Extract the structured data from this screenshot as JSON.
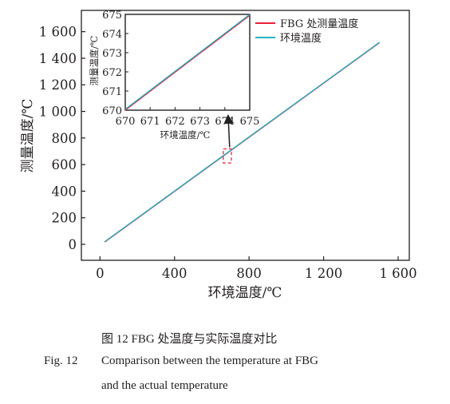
{
  "chart_data": [
    {
      "type": "line",
      "role": "main",
      "xlabel": "环境温度/℃",
      "ylabel": "测量温度/℃",
      "xlim": [
        -100,
        1660
      ],
      "ylim": [
        -120,
        1760
      ],
      "xticks": [
        0,
        400,
        800,
        1200,
        1600
      ],
      "xtick_labels": [
        "0",
        "400",
        "800",
        "1 200",
        "1 600"
      ],
      "yticks": [
        0,
        200,
        400,
        600,
        800,
        1000,
        1200,
        1400,
        1600
      ],
      "ytick_labels": [
        "0",
        "200",
        "400",
        "600",
        "800",
        "1 000",
        "1 200",
        "1 400",
        "1 600"
      ],
      "series": [
        {
          "name": "FBG 处测量温度",
          "color": "#e8203a",
          "x": [
            25,
            1500
          ],
          "y": [
            17,
            1517
          ]
        },
        {
          "name": "环境温度",
          "color": "#27b3c4",
          "x": [
            25,
            1500
          ],
          "y": [
            20,
            1520
          ]
        }
      ],
      "legend": [
        "FBG 处测量温度",
        "环境温度"
      ],
      "legend_position": "top-right",
      "zoom_box": {
        "x": [
          670,
          675
        ],
        "y": [
          600,
          700
        ],
        "color": "#e8203a"
      }
    },
    {
      "type": "line",
      "role": "inset",
      "xlabel": "环境温度/℃",
      "ylabel": "测量温度/℃",
      "xlim": [
        670,
        675
      ],
      "ylim": [
        670,
        675
      ],
      "xticks": [
        670,
        671,
        672,
        673,
        674,
        675
      ],
      "xtick_labels": [
        "670",
        "671",
        "672",
        "673",
        "674",
        "675"
      ],
      "yticks": [
        670,
        671,
        672,
        673,
        674,
        675
      ],
      "ytick_labels": [
        "670",
        "671",
        "672",
        "673",
        "674",
        "675"
      ],
      "series": [
        {
          "name": "FBG 处测量温度",
          "color": "#e8203a",
          "x": [
            670,
            675
          ],
          "y": [
            670.0,
            674.95
          ]
        },
        {
          "name": "环境温度",
          "color": "#27b3c4",
          "x": [
            670,
            675
          ],
          "y": [
            670.05,
            675.0
          ]
        }
      ]
    }
  ],
  "caption": {
    "zh": "图 12    FBG 处温度与实际温度对比",
    "en_label": "Fig. 12",
    "en_line1": "Comparison between the temperature at FBG",
    "en_line2": "and the actual temperature"
  }
}
